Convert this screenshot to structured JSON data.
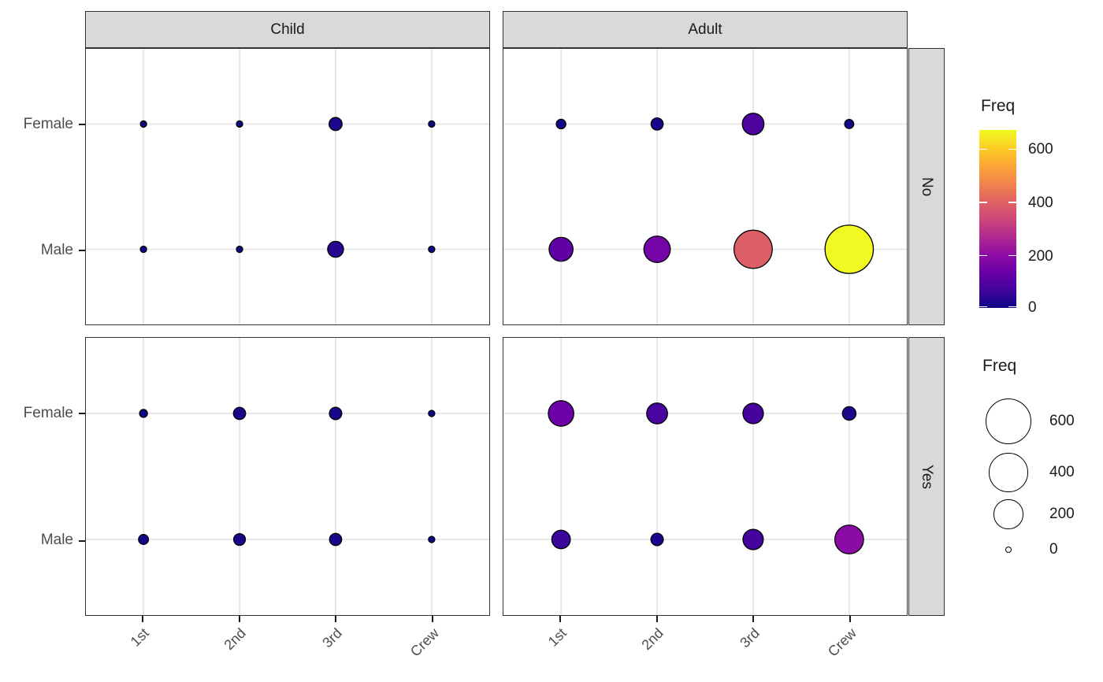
{
  "chart_data": {
    "type": "scatter",
    "title": "",
    "xlabel": "",
    "ylabel": "",
    "x_categories": [
      "1st",
      "2nd",
      "3rd",
      "Crew"
    ],
    "y_categories": [
      "Female",
      "Male"
    ],
    "facet_cols": [
      "Child",
      "Adult"
    ],
    "facet_rows": [
      "No",
      "Yes"
    ],
    "grid": "on",
    "facets": [
      {
        "age": "Child",
        "survived": "No",
        "series": [
          {
            "name": "Female",
            "values": [
              0,
              0,
              17,
              0
            ]
          },
          {
            "name": "Male",
            "values": [
              0,
              0,
              35,
              0
            ]
          }
        ]
      },
      {
        "age": "Adult",
        "survived": "No",
        "series": [
          {
            "name": "Female",
            "values": [
              4,
              13,
              89,
              3
            ]
          },
          {
            "name": "Male",
            "values": [
              118,
              154,
              387,
              670
            ]
          }
        ]
      },
      {
        "age": "Child",
        "survived": "Yes",
        "series": [
          {
            "name": "Female",
            "values": [
              1,
              13,
              14,
              0
            ]
          },
          {
            "name": "Male",
            "values": [
              5,
              11,
              13,
              0
            ]
          }
        ]
      },
      {
        "age": "Adult",
        "survived": "Yes",
        "series": [
          {
            "name": "Female",
            "values": [
              140,
              80,
              76,
              20
            ]
          },
          {
            "name": "Male",
            "values": [
              57,
              14,
              75,
              192
            ]
          }
        ]
      }
    ],
    "color_scale": {
      "name": "plasma",
      "domain": [
        0,
        670
      ],
      "stops": [
        "#0d0887",
        "#41049d",
        "#6a00a8",
        "#8f0da4",
        "#b12a90",
        "#cc4778",
        "#e16462",
        "#f2844b",
        "#fca636",
        "#fcce25",
        "#f0f921"
      ]
    },
    "legend_color": {
      "title": "Freq",
      "tick_values": [
        600,
        400,
        200,
        0
      ],
      "tick_labels": [
        "600",
        "400",
        "200",
        "0"
      ]
    },
    "legend_size": {
      "title": "Freq",
      "values": [
        600,
        400,
        200,
        0
      ],
      "labels": [
        "600",
        "400",
        "200",
        "0"
      ]
    }
  },
  "colors": {
    "strip_fill": "#d9d9d9",
    "panel_border": "#333333",
    "gridline": "#e8e8e8",
    "axis_text": "#4d4d4d",
    "point_stroke": "#000000"
  }
}
